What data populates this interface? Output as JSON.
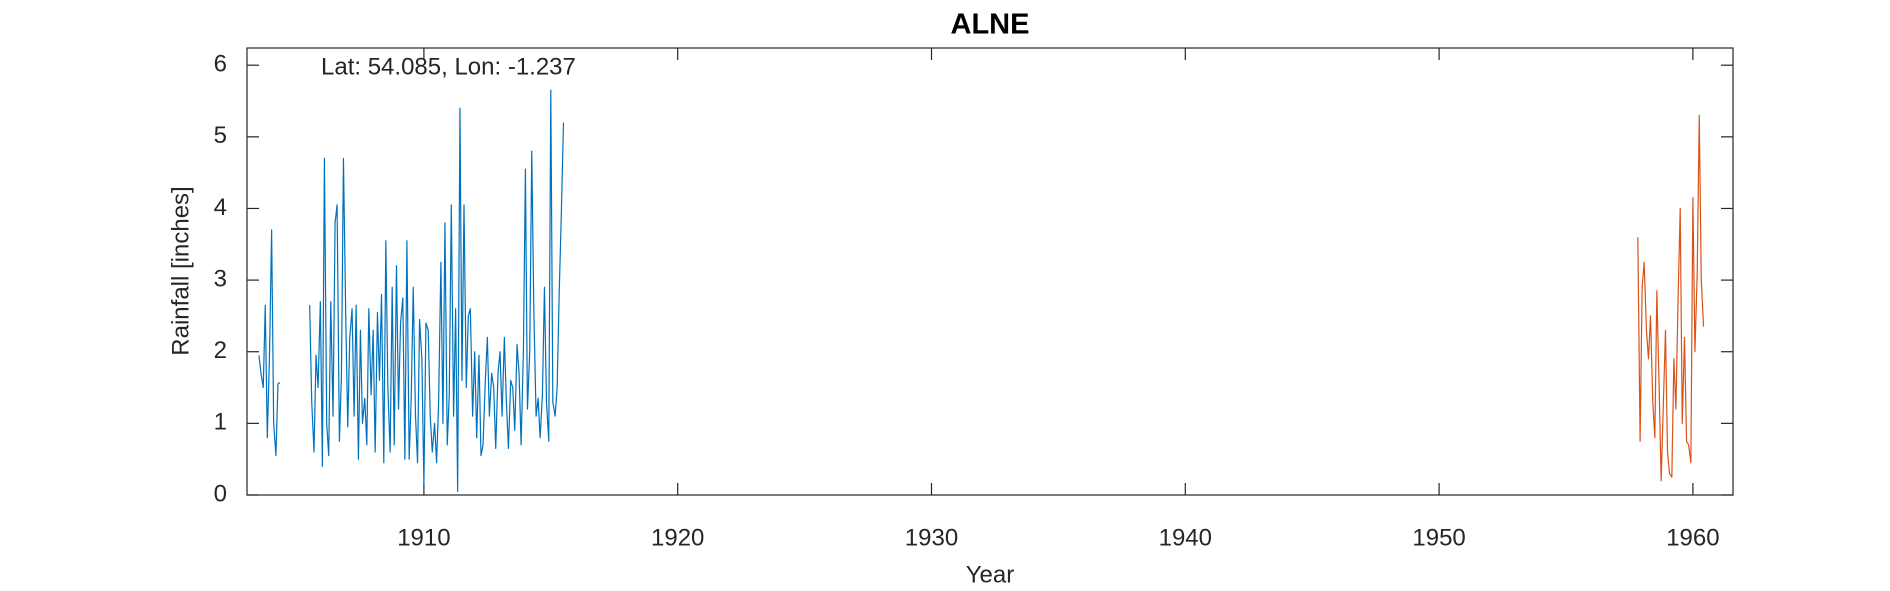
{
  "chart_data": {
    "type": "line",
    "title": "ALNE",
    "x_label": "Year",
    "y_label": "Rainfall [inches]",
    "annotation": "Lat: 54.085, Lon: -1.237",
    "xlim": [
      1903.03,
      1961.58
    ],
    "ylim": [
      0,
      6.24
    ],
    "xticks": [
      1910,
      1920,
      1930,
      1940,
      1950,
      1960
    ],
    "yticks": [
      0,
      1,
      2,
      3,
      4,
      5,
      6
    ],
    "series": [
      {
        "color": "#0072bd",
        "x": [
          1903.5,
          1903.58,
          1903.67,
          1903.75,
          1903.83,
          1903.92,
          1904.0,
          1904.08,
          1904.17,
          1904.25,
          1904.33,
          1905.0,
          1905.5,
          1905.58,
          1905.67,
          1905.75,
          1905.83,
          1905.92,
          1906.0,
          1906.08,
          1906.17,
          1906.25,
          1906.33,
          1906.42,
          1906.5,
          1906.58,
          1906.67,
          1906.75,
          1906.83,
          1906.92,
          1907.0,
          1907.08,
          1907.17,
          1907.25,
          1907.33,
          1907.42,
          1907.5,
          1907.58,
          1907.67,
          1907.75,
          1907.83,
          1907.92,
          1908.0,
          1908.08,
          1908.17,
          1908.25,
          1908.33,
          1908.42,
          1908.5,
          1908.58,
          1908.67,
          1908.75,
          1908.83,
          1908.92,
          1909.0,
          1909.08,
          1909.17,
          1909.25,
          1909.33,
          1909.42,
          1909.5,
          1909.58,
          1909.67,
          1909.75,
          1909.83,
          1909.92,
          1910.0,
          1910.08,
          1910.17,
          1910.25,
          1910.33,
          1910.42,
          1910.5,
          1910.58,
          1910.67,
          1910.75,
          1910.83,
          1910.92,
          1911.0,
          1911.08,
          1911.17,
          1911.25,
          1911.33,
          1911.42,
          1911.5,
          1911.58,
          1911.67,
          1911.75,
          1911.83,
          1911.92,
          1912.0,
          1912.08,
          1912.17,
          1912.25,
          1912.33,
          1912.42,
          1912.5,
          1912.58,
          1912.67,
          1912.75,
          1912.83,
          1912.92,
          1913.0,
          1913.08,
          1913.17,
          1913.25,
          1913.33,
          1913.42,
          1913.5,
          1913.58,
          1913.67,
          1913.75,
          1913.83,
          1913.92,
          1914.0,
          1914.08,
          1914.17,
          1914.25,
          1914.33,
          1914.42,
          1914.5,
          1914.58,
          1914.67,
          1914.75,
          1914.83,
          1914.92,
          1915.0,
          1915.08,
          1915.17,
          1915.25,
          1915.33,
          1915.42,
          1915.5
        ],
        "values": [
          1.95,
          1.7,
          1.5,
          2.65,
          0.8,
          2.0,
          3.7,
          1.0,
          0.55,
          1.55,
          1.57,
          null,
          2.65,
          1.3,
          0.6,
          1.95,
          1.5,
          2.7,
          0.4,
          4.7,
          1.0,
          0.55,
          2.7,
          1.1,
          3.8,
          4.05,
          0.75,
          1.65,
          4.7,
          2.5,
          0.95,
          2.2,
          2.6,
          1.1,
          2.65,
          0.5,
          2.3,
          1.0,
          1.35,
          0.7,
          2.6,
          1.4,
          2.3,
          0.6,
          2.55,
          1.6,
          2.8,
          0.45,
          3.55,
          1.5,
          0.6,
          2.9,
          0.7,
          3.2,
          1.2,
          2.4,
          2.75,
          0.5,
          3.55,
          0.5,
          1.35,
          2.9,
          1.1,
          0.45,
          2.45,
          1.9,
          0.15,
          2.4,
          2.3,
          1.1,
          0.6,
          1.0,
          0.45,
          1.3,
          3.25,
          1.0,
          3.8,
          0.7,
          1.4,
          4.05,
          1.1,
          2.6,
          0.05,
          5.4,
          1.6,
          4.05,
          1.5,
          2.5,
          2.6,
          1.1,
          2.0,
          0.8,
          1.95,
          0.55,
          0.7,
          1.6,
          2.2,
          1.1,
          1.7,
          1.5,
          0.65,
          1.7,
          2.0,
          1.1,
          2.2,
          1.3,
          0.65,
          1.6,
          1.5,
          0.9,
          2.1,
          1.7,
          0.7,
          2.0,
          4.55,
          1.2,
          2.0,
          4.8,
          2.6,
          1.1,
          1.35,
          0.8,
          1.4,
          2.9,
          1.3,
          0.75,
          5.65,
          1.3,
          1.1,
          1.5,
          2.8,
          4.0,
          5.2
        ]
      },
      {
        "color": "#d95319",
        "x": [
          1957.83,
          1957.92,
          1958.0,
          1958.08,
          1958.17,
          1958.25,
          1958.33,
          1958.42,
          1958.5,
          1958.58,
          1958.67,
          1958.75,
          1958.83,
          1958.92,
          1959.0,
          1959.08,
          1959.17,
          1959.25,
          1959.33,
          1959.42,
          1959.5,
          1959.58,
          1959.67,
          1959.75,
          1959.83,
          1959.92,
          1960.0,
          1960.08,
          1960.17,
          1960.25,
          1960.33,
          1960.42
        ],
        "values": [
          3.6,
          0.75,
          2.9,
          3.25,
          2.3,
          1.9,
          2.5,
          1.3,
          0.8,
          2.85,
          1.5,
          0.2,
          1.2,
          2.3,
          0.6,
          0.3,
          0.25,
          1.9,
          1.2,
          2.8,
          4.0,
          1.0,
          2.2,
          0.75,
          0.7,
          0.45,
          4.15,
          2.0,
          3.1,
          5.3,
          3.0,
          2.35
        ]
      }
    ]
  }
}
